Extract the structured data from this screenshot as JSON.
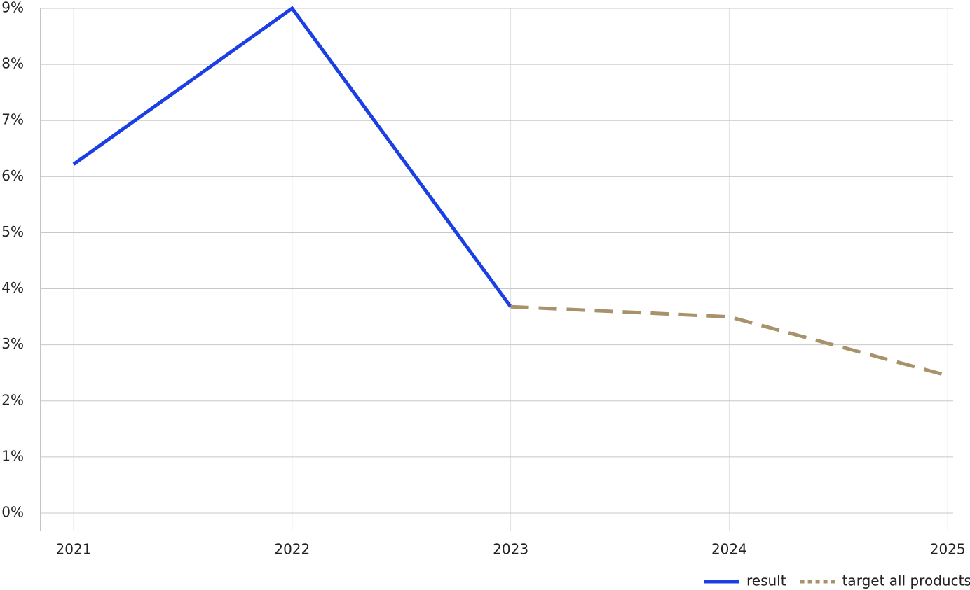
{
  "chart_data": {
    "type": "line",
    "categories": [
      "2021",
      "2022",
      "2023",
      "2024",
      "2025"
    ],
    "series": [
      {
        "name": "result",
        "color": "#1b3fe3",
        "line_style": "solid",
        "values": [
          6.22,
          9.0,
          3.68,
          null,
          null
        ]
      },
      {
        "name": "target all products",
        "color": "#a8926c",
        "line_style": "dashed",
        "values": [
          null,
          null,
          3.68,
          3.5,
          2.45
        ]
      }
    ],
    "ylim": [
      0,
      9
    ],
    "yticks": [
      {
        "value": 0,
        "label": "0%"
      },
      {
        "value": 1,
        "label": "1%"
      },
      {
        "value": 2,
        "label": "2%"
      },
      {
        "value": 3,
        "label": "3%"
      },
      {
        "value": 4,
        "label": "4%"
      },
      {
        "value": 5,
        "label": "5%"
      },
      {
        "value": 6,
        "label": "6%"
      },
      {
        "value": 7,
        "label": "7%"
      },
      {
        "value": 8,
        "label": "8%"
      },
      {
        "value": 9,
        "label": "9%"
      }
    ],
    "grid": true,
    "legend": "bottom-right"
  }
}
